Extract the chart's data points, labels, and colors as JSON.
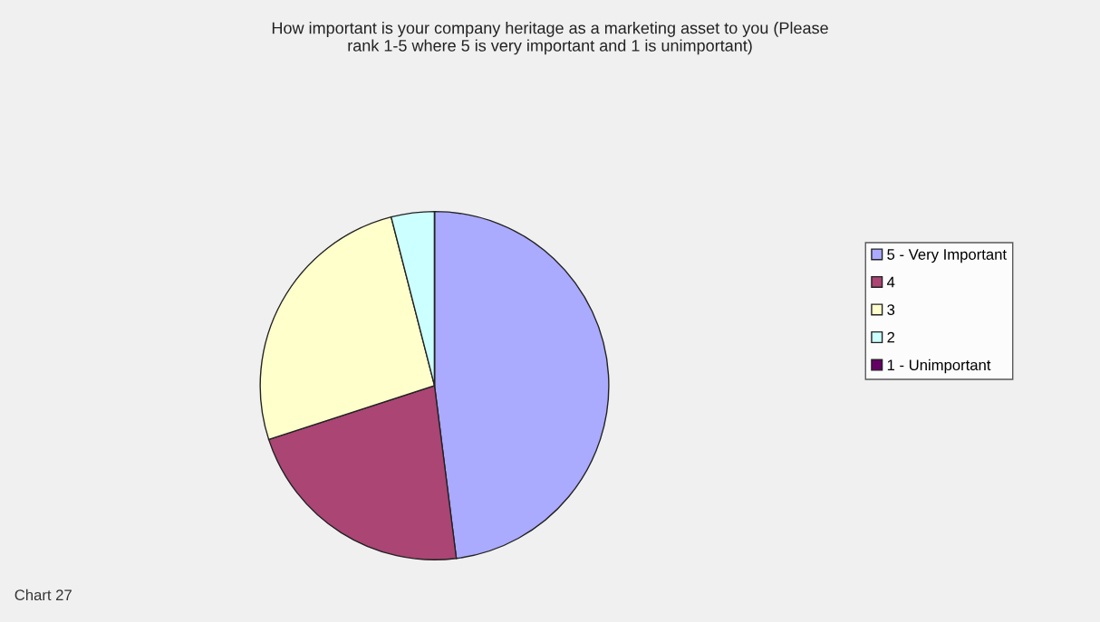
{
  "chart_data": {
    "type": "pie",
    "title": "How important is your company heritage as a marketing asset to you (Please\nrank 1-5 where 5 is very important and 1 is unimportant)",
    "categories": [
      "5 - Very Important",
      "4",
      "3",
      "2",
      "1 - Unimportant"
    ],
    "values": [
      48,
      22,
      26,
      4,
      0
    ],
    "colors": [
      "#aaaaff",
      "#aa4574",
      "#ffffcc",
      "#ccffff",
      "#660066"
    ],
    "legend": "right",
    "annotations": [
      "Chart 27"
    ]
  }
}
